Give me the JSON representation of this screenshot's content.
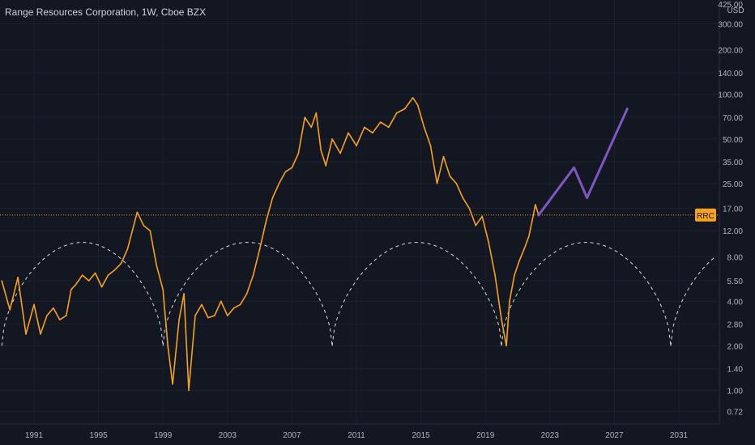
{
  "chart_data": {
    "title": "Range Resources Corporation, 1W, Cboe BZX",
    "type": "line",
    "symbol": "RRC",
    "currency": "USD",
    "y_scale": "log",
    "ylim": [
      0.6,
      425
    ],
    "xlim_years": [
      1989,
      2034
    ],
    "y_ticks": [
      425,
      300,
      200,
      140,
      100,
      70,
      50,
      35,
      25,
      17,
      12,
      8,
      5.5,
      4,
      2.8,
      2,
      1.4,
      1,
      0.72
    ],
    "y_tick_labels": [
      "425.00",
      "300.00",
      "200.00",
      "140.00",
      "100.00",
      "70.00",
      "50.00",
      "35.00",
      "25.00",
      "17.00",
      "12.00",
      "8.00",
      "5.50",
      "4.00",
      "2.80",
      "2.00",
      "1.40",
      "1.00",
      "0.72"
    ],
    "x_ticks": [
      1991,
      1995,
      1999,
      2003,
      2007,
      2011,
      2015,
      2019,
      2023,
      2027,
      2031
    ],
    "x_tick_labels": [
      "1991",
      "1995",
      "1999",
      "2003",
      "2007",
      "2011",
      "2015",
      "2019",
      "2023",
      "2027",
      "2031"
    ],
    "current_price_label": "RRC",
    "current_price": 15.3,
    "price_series": {
      "name": "RRC",
      "color": "#f7a21b",
      "x": [
        1989.0,
        1989.5,
        1990.0,
        1990.5,
        1991.0,
        1991.4,
        1991.8,
        1992.2,
        1992.6,
        1993.0,
        1993.3,
        1993.6,
        1994.0,
        1994.4,
        1994.8,
        1995.2,
        1995.6,
        1996.0,
        1996.4,
        1996.8,
        1997.1,
        1997.4,
        1997.8,
        1998.2,
        1998.6,
        1999.0,
        1999.3,
        1999.6,
        2000.0,
        2000.3,
        2000.6,
        2001.0,
        2001.4,
        2001.8,
        2002.2,
        2002.6,
        2003.0,
        2003.4,
        2003.8,
        2004.2,
        2004.6,
        2005.0,
        2005.4,
        2005.8,
        2006.2,
        2006.6,
        2007.0,
        2007.4,
        2007.8,
        2008.2,
        2008.5,
        2008.8,
        2009.1,
        2009.5,
        2010.0,
        2010.5,
        2011.0,
        2011.5,
        2012.0,
        2012.5,
        2013.0,
        2013.5,
        2014.0,
        2014.5,
        2014.8,
        2015.2,
        2015.6,
        2016.0,
        2016.4,
        2016.8,
        2017.2,
        2017.6,
        2018.0,
        2018.4,
        2018.8,
        2019.2,
        2019.6,
        2020.0,
        2020.3,
        2020.5,
        2020.8,
        2021.1,
        2021.4,
        2021.7,
        2021.9,
        2022.1,
        2022.3
      ],
      "y": [
        5.5,
        3.5,
        5.8,
        2.4,
        3.8,
        2.4,
        3.2,
        3.6,
        3.0,
        3.2,
        4.8,
        5.2,
        6.0,
        5.5,
        6.2,
        5.0,
        6.0,
        6.5,
        7.2,
        9.0,
        12.0,
        16.0,
        13.0,
        12.0,
        7.0,
        4.8,
        2.0,
        1.1,
        3.0,
        4.5,
        1.0,
        3.2,
        3.8,
        3.1,
        3.2,
        4.0,
        3.2,
        3.6,
        3.8,
        4.5,
        6.0,
        9.0,
        14.0,
        20.0,
        25.0,
        30.0,
        32.0,
        40.0,
        70.0,
        60.0,
        75.0,
        42.0,
        33.0,
        50.0,
        40.0,
        55.0,
        45.0,
        60.0,
        55.0,
        65.0,
        60.0,
        75.0,
        80.0,
        95.0,
        85.0,
        60.0,
        45.0,
        25.0,
        38.0,
        28.0,
        25.0,
        20.0,
        17.0,
        13.0,
        15.0,
        10.0,
        6.0,
        3.0,
        2.0,
        4.0,
        6.0,
        7.5,
        9.0,
        11.0,
        14.0,
        18.0,
        15.3
      ]
    },
    "projection_series": {
      "color": "#7e57c2",
      "x": [
        2022.3,
        2024.5,
        2025.3,
        2027.8
      ],
      "y": [
        15.3,
        32.0,
        20.0,
        80.0
      ]
    },
    "cycle_arcs": {
      "color": "#ffffff",
      "style": "dashed",
      "bottoms": [
        {
          "year": 1989.0,
          "price": 2.0
        },
        {
          "year": 1999.0,
          "price": 2.0
        },
        {
          "year": 2009.5,
          "price": 2.0
        },
        {
          "year": 2020.0,
          "price": 2.0
        },
        {
          "year": 2030.5,
          "price": 2.0
        }
      ],
      "peak_price": 10.0
    },
    "resistance_line": {
      "price": 15.3,
      "color": "#f7a21b",
      "style": "dotted"
    },
    "grid": true,
    "legend": "none"
  }
}
